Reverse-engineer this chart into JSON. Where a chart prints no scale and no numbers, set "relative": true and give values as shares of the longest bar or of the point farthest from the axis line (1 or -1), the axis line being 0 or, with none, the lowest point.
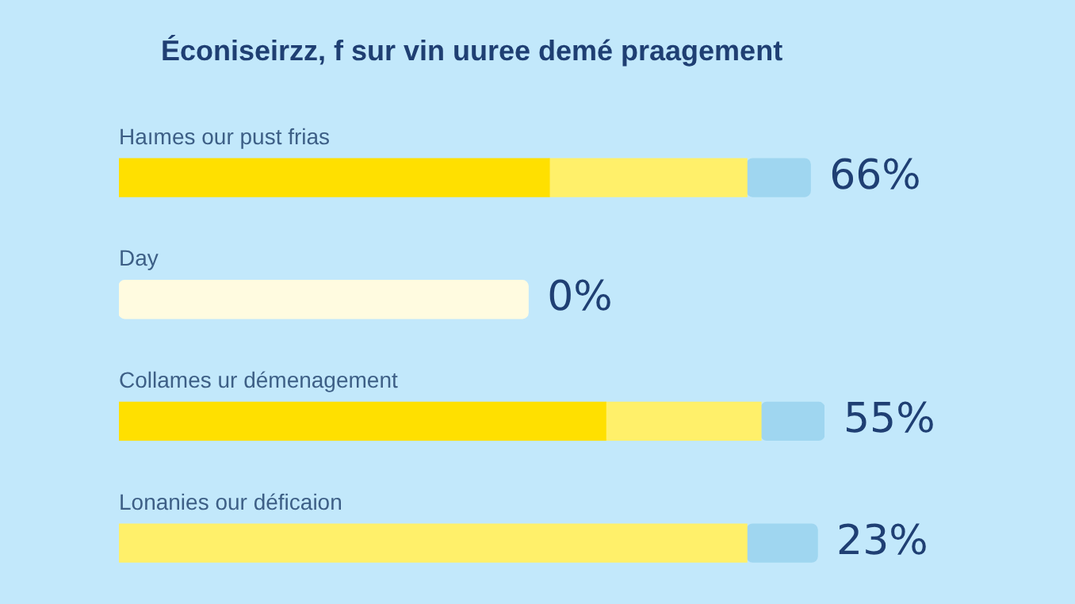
{
  "chart_data": {
    "type": "bar",
    "orientation": "horizontal",
    "stacked": true,
    "relative": true,
    "legend": false,
    "title": "Éconiseirzz, f sur vin uuree demé praagement",
    "categories": [
      "Haımes our pust frias",
      "Day",
      "Collames ur démenagement",
      "Lonanies our déficaion"
    ],
    "series": [
      {
        "color": "#ffe000",
        "values": [
          0.61,
          null,
          0.69,
          null
        ]
      },
      {
        "color": "#fffbe0",
        "values": [
          null,
          0.58,
          null,
          null
        ]
      },
      {
        "color": "#fff06a",
        "values": [
          0.28,
          null,
          0.22,
          0.89
        ]
      },
      {
        "color": "#9fd6f0",
        "values": [
          0.09,
          null,
          0.09,
          0.1
        ]
      }
    ],
    "annotations": [
      "66%",
      "0%",
      "55%",
      "23%"
    ]
  }
}
